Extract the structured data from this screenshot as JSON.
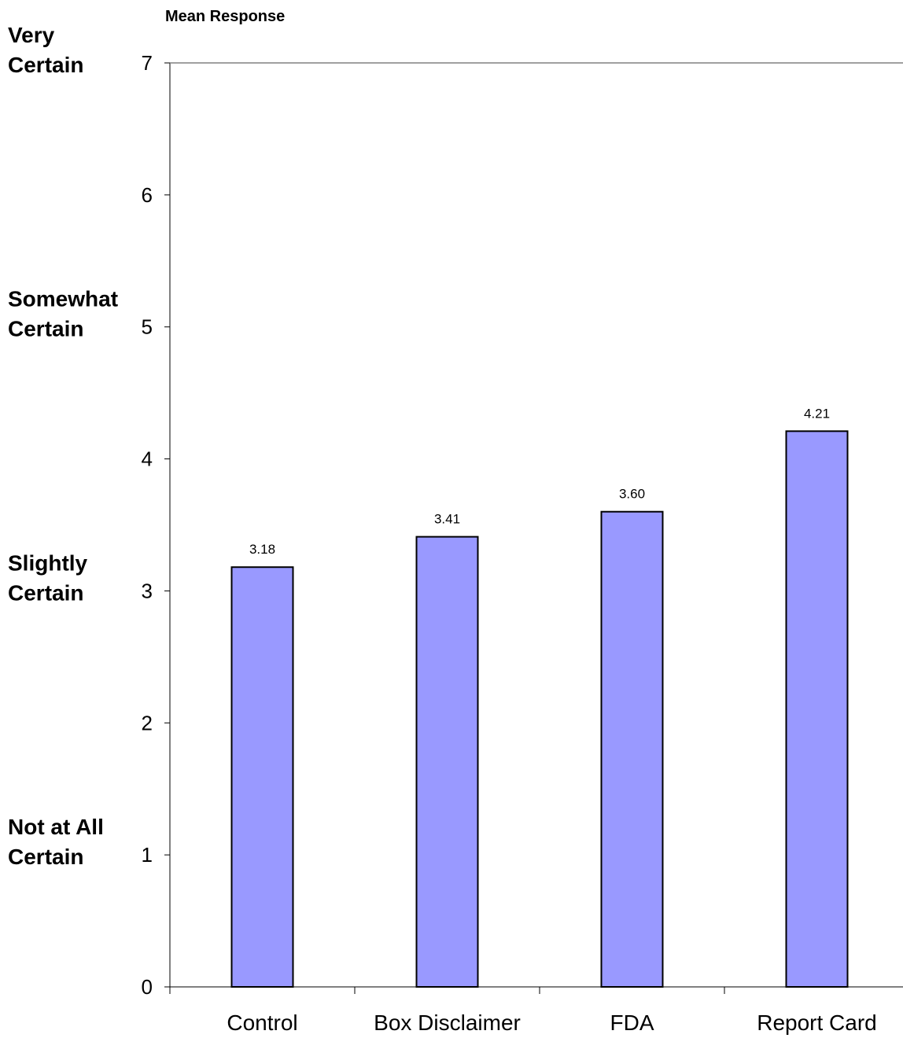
{
  "chart_data": {
    "type": "bar",
    "ylabel": "Mean Response",
    "categories": [
      "Control",
      "Box Disclaimer",
      "FDA",
      "Report Card"
    ],
    "values": [
      3.18,
      3.41,
      3.6,
      4.21
    ],
    "value_labels": [
      "3.18",
      "3.41",
      "3.60",
      "4.21"
    ],
    "ylim": [
      0,
      7
    ],
    "yticks": [
      0,
      1,
      2,
      3,
      4,
      5,
      6,
      7
    ],
    "scale_anchors": [
      {
        "value": 7,
        "lines": [
          "Very",
          "Certain"
        ]
      },
      {
        "value": 5,
        "lines": [
          "Somewhat",
          "Certain"
        ]
      },
      {
        "value": 3,
        "lines": [
          "Slightly",
          "Certain"
        ]
      },
      {
        "value": 1,
        "lines": [
          "Not at All",
          "Certain"
        ]
      }
    ],
    "grid": false,
    "legend": "none",
    "bar_color": "#9999FF"
  }
}
